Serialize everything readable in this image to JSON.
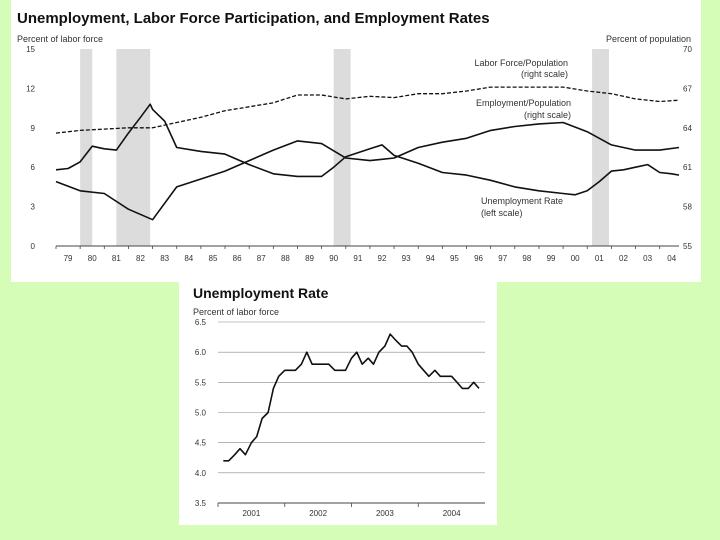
{
  "chart_data": [
    {
      "type": "line",
      "title": "Unemployment, Labor Force Participation, and Employment Rates",
      "left_axis_label": "Percent of labor force",
      "right_axis_label": "Percent of population",
      "left_ylim": [
        0,
        15
      ],
      "left_ticks": [
        "0",
        "3",
        "6",
        "9",
        "12",
        "15"
      ],
      "right_ylim": [
        55,
        70
      ],
      "right_ticks": [
        "55",
        "58",
        "61",
        "64",
        "67",
        "70"
      ],
      "x_range": [
        1979,
        2004.8
      ],
      "x_ticks": [
        "79",
        "80",
        "81",
        "82",
        "83",
        "84",
        "85",
        "86",
        "87",
        "88",
        "89",
        "90",
        "91",
        "92",
        "93",
        "94",
        "95",
        "96",
        "97",
        "98",
        "99",
        "00",
        "01",
        "02",
        "03",
        "04"
      ],
      "recessions": [
        [
          1980.0,
          1980.5
        ],
        [
          1981.5,
          1982.9
        ],
        [
          1990.5,
          1991.2
        ],
        [
          2001.2,
          2001.9
        ]
      ],
      "annotations": {
        "lfp": [
          "Labor Force/Population",
          "(right scale)"
        ],
        "emp": [
          "Employment/Population",
          "(right scale)"
        ],
        "unemp": [
          "Unemployment Rate",
          "(left scale)"
        ]
      },
      "series": [
        {
          "name": "Labor Force/Population",
          "scale": "right",
          "style": "dashed",
          "points": [
            [
              1979,
              63.6
            ],
            [
              1980,
              63.8
            ],
            [
              1981,
              63.9
            ],
            [
              1982,
              64.0
            ],
            [
              1983,
              64.0
            ],
            [
              1984,
              64.4
            ],
            [
              1985,
              64.8
            ],
            [
              1986,
              65.3
            ],
            [
              1987,
              65.6
            ],
            [
              1988,
              65.9
            ],
            [
              1989,
              66.5
            ],
            [
              1990,
              66.5
            ],
            [
              1991,
              66.2
            ],
            [
              1992,
              66.4
            ],
            [
              1993,
              66.3
            ],
            [
              1994,
              66.6
            ],
            [
              1995,
              66.6
            ],
            [
              1996,
              66.8
            ],
            [
              1997,
              67.1
            ],
            [
              1998,
              67.1
            ],
            [
              1999,
              67.1
            ],
            [
              2000,
              67.1
            ],
            [
              2001,
              66.8
            ],
            [
              2002,
              66.6
            ],
            [
              2003,
              66.2
            ],
            [
              2004,
              66.0
            ],
            [
              2004.8,
              66.1
            ]
          ]
        },
        {
          "name": "Employment/Population",
          "scale": "right",
          "style": "solid",
          "points": [
            [
              1979,
              59.9
            ],
            [
              1980,
              59.2
            ],
            [
              1981,
              59.0
            ],
            [
              1982,
              57.8
            ],
            [
              1983,
              57.0
            ],
            [
              1984,
              59.5
            ],
            [
              1985,
              60.1
            ],
            [
              1986,
              60.7
            ],
            [
              1987,
              61.5
            ],
            [
              1988,
              62.3
            ],
            [
              1989,
              63.0
            ],
            [
              1990,
              62.8
            ],
            [
              1991,
              61.7
            ],
            [
              1992,
              61.5
            ],
            [
              1993,
              61.7
            ],
            [
              1994,
              62.5
            ],
            [
              1995,
              62.9
            ],
            [
              1996,
              63.2
            ],
            [
              1997,
              63.8
            ],
            [
              1998,
              64.1
            ],
            [
              1999,
              64.3
            ],
            [
              2000,
              64.4
            ],
            [
              2001,
              63.7
            ],
            [
              2002,
              62.7
            ],
            [
              2003,
              62.3
            ],
            [
              2004,
              62.3
            ],
            [
              2004.8,
              62.5
            ]
          ]
        },
        {
          "name": "Unemployment Rate",
          "scale": "left",
          "style": "solid",
          "points": [
            [
              1979,
              5.8
            ],
            [
              1979.5,
              5.9
            ],
            [
              1980,
              6.4
            ],
            [
              1980.5,
              7.6
            ],
            [
              1981,
              7.4
            ],
            [
              1981.5,
              7.3
            ],
            [
              1982,
              8.6
            ],
            [
              1982.5,
              9.8
            ],
            [
              1982.9,
              10.8
            ],
            [
              1983,
              10.4
            ],
            [
              1983.5,
              9.5
            ],
            [
              1984,
              7.5
            ],
            [
              1985,
              7.2
            ],
            [
              1986,
              7.0
            ],
            [
              1987,
              6.2
            ],
            [
              1988,
              5.5
            ],
            [
              1989,
              5.3
            ],
            [
              1990,
              5.3
            ],
            [
              1990.5,
              6.0
            ],
            [
              1991,
              6.8
            ],
            [
              1992,
              7.4
            ],
            [
              1992.5,
              7.7
            ],
            [
              1993,
              6.9
            ],
            [
              1994,
              6.3
            ],
            [
              1995,
              5.6
            ],
            [
              1996,
              5.4
            ],
            [
              1997,
              5.0
            ],
            [
              1998,
              4.5
            ],
            [
              1999,
              4.2
            ],
            [
              2000,
              4.0
            ],
            [
              2000.5,
              3.9
            ],
            [
              2001,
              4.2
            ],
            [
              2001.5,
              4.9
            ],
            [
              2002,
              5.7
            ],
            [
              2002.5,
              5.8
            ],
            [
              2003,
              6.0
            ],
            [
              2003.5,
              6.2
            ],
            [
              2004,
              5.6
            ],
            [
              2004.5,
              5.5
            ],
            [
              2004.8,
              5.4
            ]
          ]
        }
      ]
    },
    {
      "type": "line",
      "title": "Unemployment Rate",
      "ylabel": "Percent of labor force",
      "ylim": [
        3.5,
        6.5
      ],
      "y_ticks": [
        "3.5",
        "4.0",
        "4.5",
        "5.0",
        "5.5",
        "6.0",
        "6.5"
      ],
      "x_range": [
        2000.92,
        2004.92
      ],
      "x_ticks": [
        "2001",
        "2002",
        "2003",
        "2004"
      ],
      "series": [
        {
          "name": "Unemployment Rate",
          "points": [
            [
              2001.0,
              4.2
            ],
            [
              2001.08,
              4.2
            ],
            [
              2001.17,
              4.3
            ],
            [
              2001.25,
              4.4
            ],
            [
              2001.33,
              4.3
            ],
            [
              2001.42,
              4.5
            ],
            [
              2001.5,
              4.6
            ],
            [
              2001.58,
              4.9
            ],
            [
              2001.67,
              5.0
            ],
            [
              2001.75,
              5.4
            ],
            [
              2001.83,
              5.6
            ],
            [
              2001.92,
              5.7
            ],
            [
              2002.0,
              5.7
            ],
            [
              2002.08,
              5.7
            ],
            [
              2002.17,
              5.8
            ],
            [
              2002.25,
              6.0
            ],
            [
              2002.33,
              5.8
            ],
            [
              2002.42,
              5.8
            ],
            [
              2002.5,
              5.8
            ],
            [
              2002.58,
              5.8
            ],
            [
              2002.67,
              5.7
            ],
            [
              2002.75,
              5.7
            ],
            [
              2002.83,
              5.7
            ],
            [
              2002.92,
              5.9
            ],
            [
              2003.0,
              6.0
            ],
            [
              2003.08,
              5.8
            ],
            [
              2003.17,
              5.9
            ],
            [
              2003.25,
              5.8
            ],
            [
              2003.33,
              6.0
            ],
            [
              2003.42,
              6.1
            ],
            [
              2003.5,
              6.3
            ],
            [
              2003.58,
              6.2
            ],
            [
              2003.67,
              6.1
            ],
            [
              2003.75,
              6.1
            ],
            [
              2003.83,
              6.0
            ],
            [
              2003.92,
              5.8
            ],
            [
              2004.0,
              5.7
            ],
            [
              2004.08,
              5.6
            ],
            [
              2004.17,
              5.7
            ],
            [
              2004.25,
              5.6
            ],
            [
              2004.33,
              5.6
            ],
            [
              2004.42,
              5.6
            ],
            [
              2004.5,
              5.5
            ],
            [
              2004.58,
              5.4
            ],
            [
              2004.67,
              5.4
            ],
            [
              2004.75,
              5.5
            ],
            [
              2004.83,
              5.4
            ]
          ]
        }
      ]
    }
  ]
}
